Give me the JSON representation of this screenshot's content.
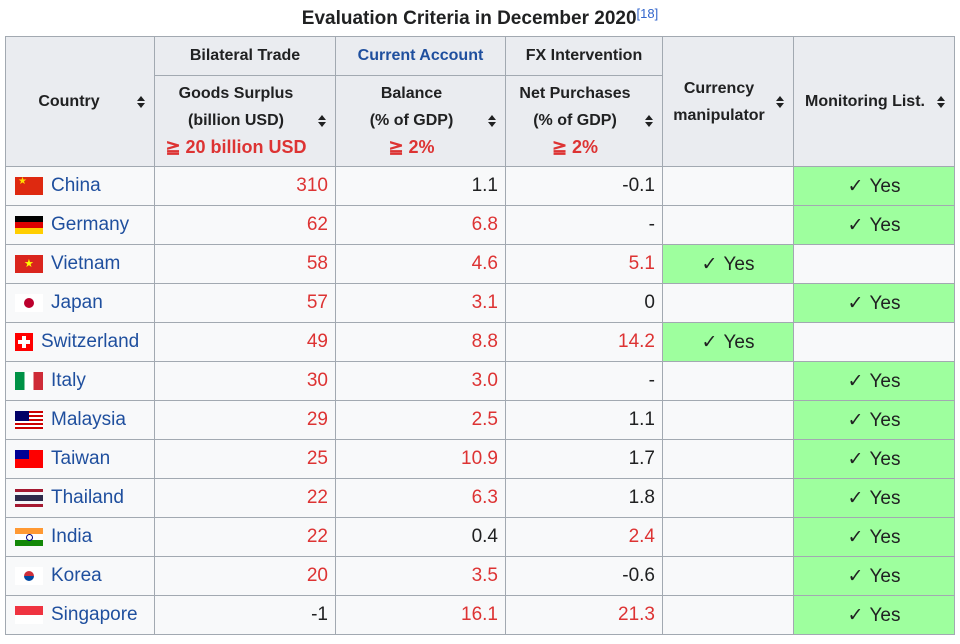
{
  "caption": {
    "title": "Evaluation Criteria in December 2020",
    "ref": "[18]"
  },
  "headers": {
    "country": "Country",
    "bilateral_trade": "Bilateral Trade",
    "current_account": "Current Account",
    "fx_intervention": "FX Intervention",
    "currency_manipulator_line1": "Currency",
    "currency_manipulator_line2": "manipulator",
    "monitoring_list": "Monitoring List.",
    "goods_line1": "Goods Surplus",
    "goods_line2": "(billion USD)",
    "goods_criterion": "≧ 20 billion USD",
    "balance_line1": "Balance",
    "balance_line2": "(% of GDP)",
    "balance_criterion": "≧ 2%",
    "net_line1": "Net Purchases",
    "net_line2": "(% of GDP)",
    "net_criterion": "≧ 2%"
  },
  "yes_label": "Yes",
  "check_glyph": "✓",
  "colors": {
    "criterion_red": "#dd3333",
    "yes_green": "#9eff9e",
    "link_blue": "#1f4f9e",
    "header_bg": "#eaecf0"
  },
  "rows": [
    {
      "country": "China",
      "flag": "china-flag",
      "goods": "310",
      "balance": "1.1",
      "net": "-0.1",
      "manipulator": "",
      "monitoring": "Yes"
    },
    {
      "country": "Germany",
      "flag": "germany-flag",
      "goods": "62",
      "balance": "6.8",
      "net": "-",
      "manipulator": "",
      "monitoring": "Yes"
    },
    {
      "country": "Vietnam",
      "flag": "vietnam-flag",
      "goods": "58",
      "balance": "4.6",
      "net": "5.1",
      "manipulator": "Yes",
      "monitoring": ""
    },
    {
      "country": "Japan",
      "flag": "japan-flag",
      "goods": "57",
      "balance": "3.1",
      "net": "0",
      "manipulator": "",
      "monitoring": "Yes"
    },
    {
      "country": "Switzerland",
      "flag": "switzerland-flag",
      "goods": "49",
      "balance": "8.8",
      "net": "14.2",
      "manipulator": "Yes",
      "monitoring": ""
    },
    {
      "country": "Italy",
      "flag": "italy-flag",
      "goods": "30",
      "balance": "3.0",
      "net": "-",
      "manipulator": "",
      "monitoring": "Yes"
    },
    {
      "country": "Malaysia",
      "flag": "malaysia-flag",
      "goods": "29",
      "balance": "2.5",
      "net": "1.1",
      "manipulator": "",
      "monitoring": "Yes"
    },
    {
      "country": "Taiwan",
      "flag": "taiwan-flag",
      "goods": "25",
      "balance": "10.9",
      "net": "1.7",
      "manipulator": "",
      "monitoring": "Yes"
    },
    {
      "country": "Thailand",
      "flag": "thailand-flag",
      "goods": "22",
      "balance": "6.3",
      "net": "1.8",
      "manipulator": "",
      "monitoring": "Yes"
    },
    {
      "country": "India",
      "flag": "india-flag",
      "goods": "22",
      "balance": "0.4",
      "net": "2.4",
      "manipulator": "",
      "monitoring": "Yes"
    },
    {
      "country": "Korea",
      "flag": "korea-flag",
      "goods": "20",
      "balance": "3.5",
      "net": "-0.6",
      "manipulator": "",
      "monitoring": "Yes"
    },
    {
      "country": "Singapore",
      "flag": "singapore-flag",
      "goods": "-1",
      "balance": "16.1",
      "net": "21.3",
      "manipulator": "",
      "monitoring": "Yes"
    }
  ]
}
